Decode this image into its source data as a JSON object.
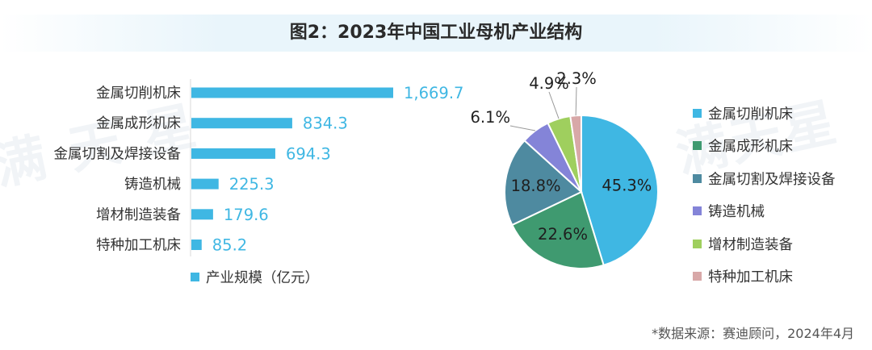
{
  "title": "图2：2023年中国工业母机产业结构",
  "watermarks": [
    "满 天 星",
    "满天星"
  ],
  "colors": {
    "bar": "#3fb7e3",
    "bar_value_text": "#3fb7e3",
    "pie": [
      "#3fb7e3",
      "#3f9a70",
      "#4e8aa0",
      "#8484d8",
      "#9fcf5e",
      "#d8a8a8"
    ]
  },
  "source": "*数据来源：赛迪顾问，2024年4月",
  "chart_data": [
    {
      "type": "bar",
      "orientation": "horizontal",
      "categories": [
        "金属切削机床",
        "金属成形机床",
        "金属切割及焊接设备",
        "铸造机械",
        "增材制造装备",
        "特种加工机床"
      ],
      "values": [
        1669.7,
        834.3,
        694.3,
        225.3,
        179.6,
        85.2
      ],
      "value_labels": [
        "1,669.7",
        "834.3",
        "694.3",
        "225.3",
        "179.6",
        "85.2"
      ],
      "series": [
        {
          "name": "产业规模（亿元）"
        }
      ],
      "xlim": [
        0,
        1669.7
      ],
      "grid": false,
      "legend_position": "bottom-left"
    },
    {
      "type": "pie",
      "labels": [
        "金属切削机床",
        "金属成形机床",
        "金属切割及焊接设备",
        "铸造机械",
        "增材制造装备",
        "特种加工机床"
      ],
      "values": [
        45.3,
        22.6,
        18.8,
        6.1,
        4.9,
        2.3
      ],
      "value_labels": [
        "45.3%",
        "22.6%",
        "18.8%",
        "6.1%",
        "4.9%",
        "2.3%"
      ],
      "legend_position": "right"
    }
  ]
}
